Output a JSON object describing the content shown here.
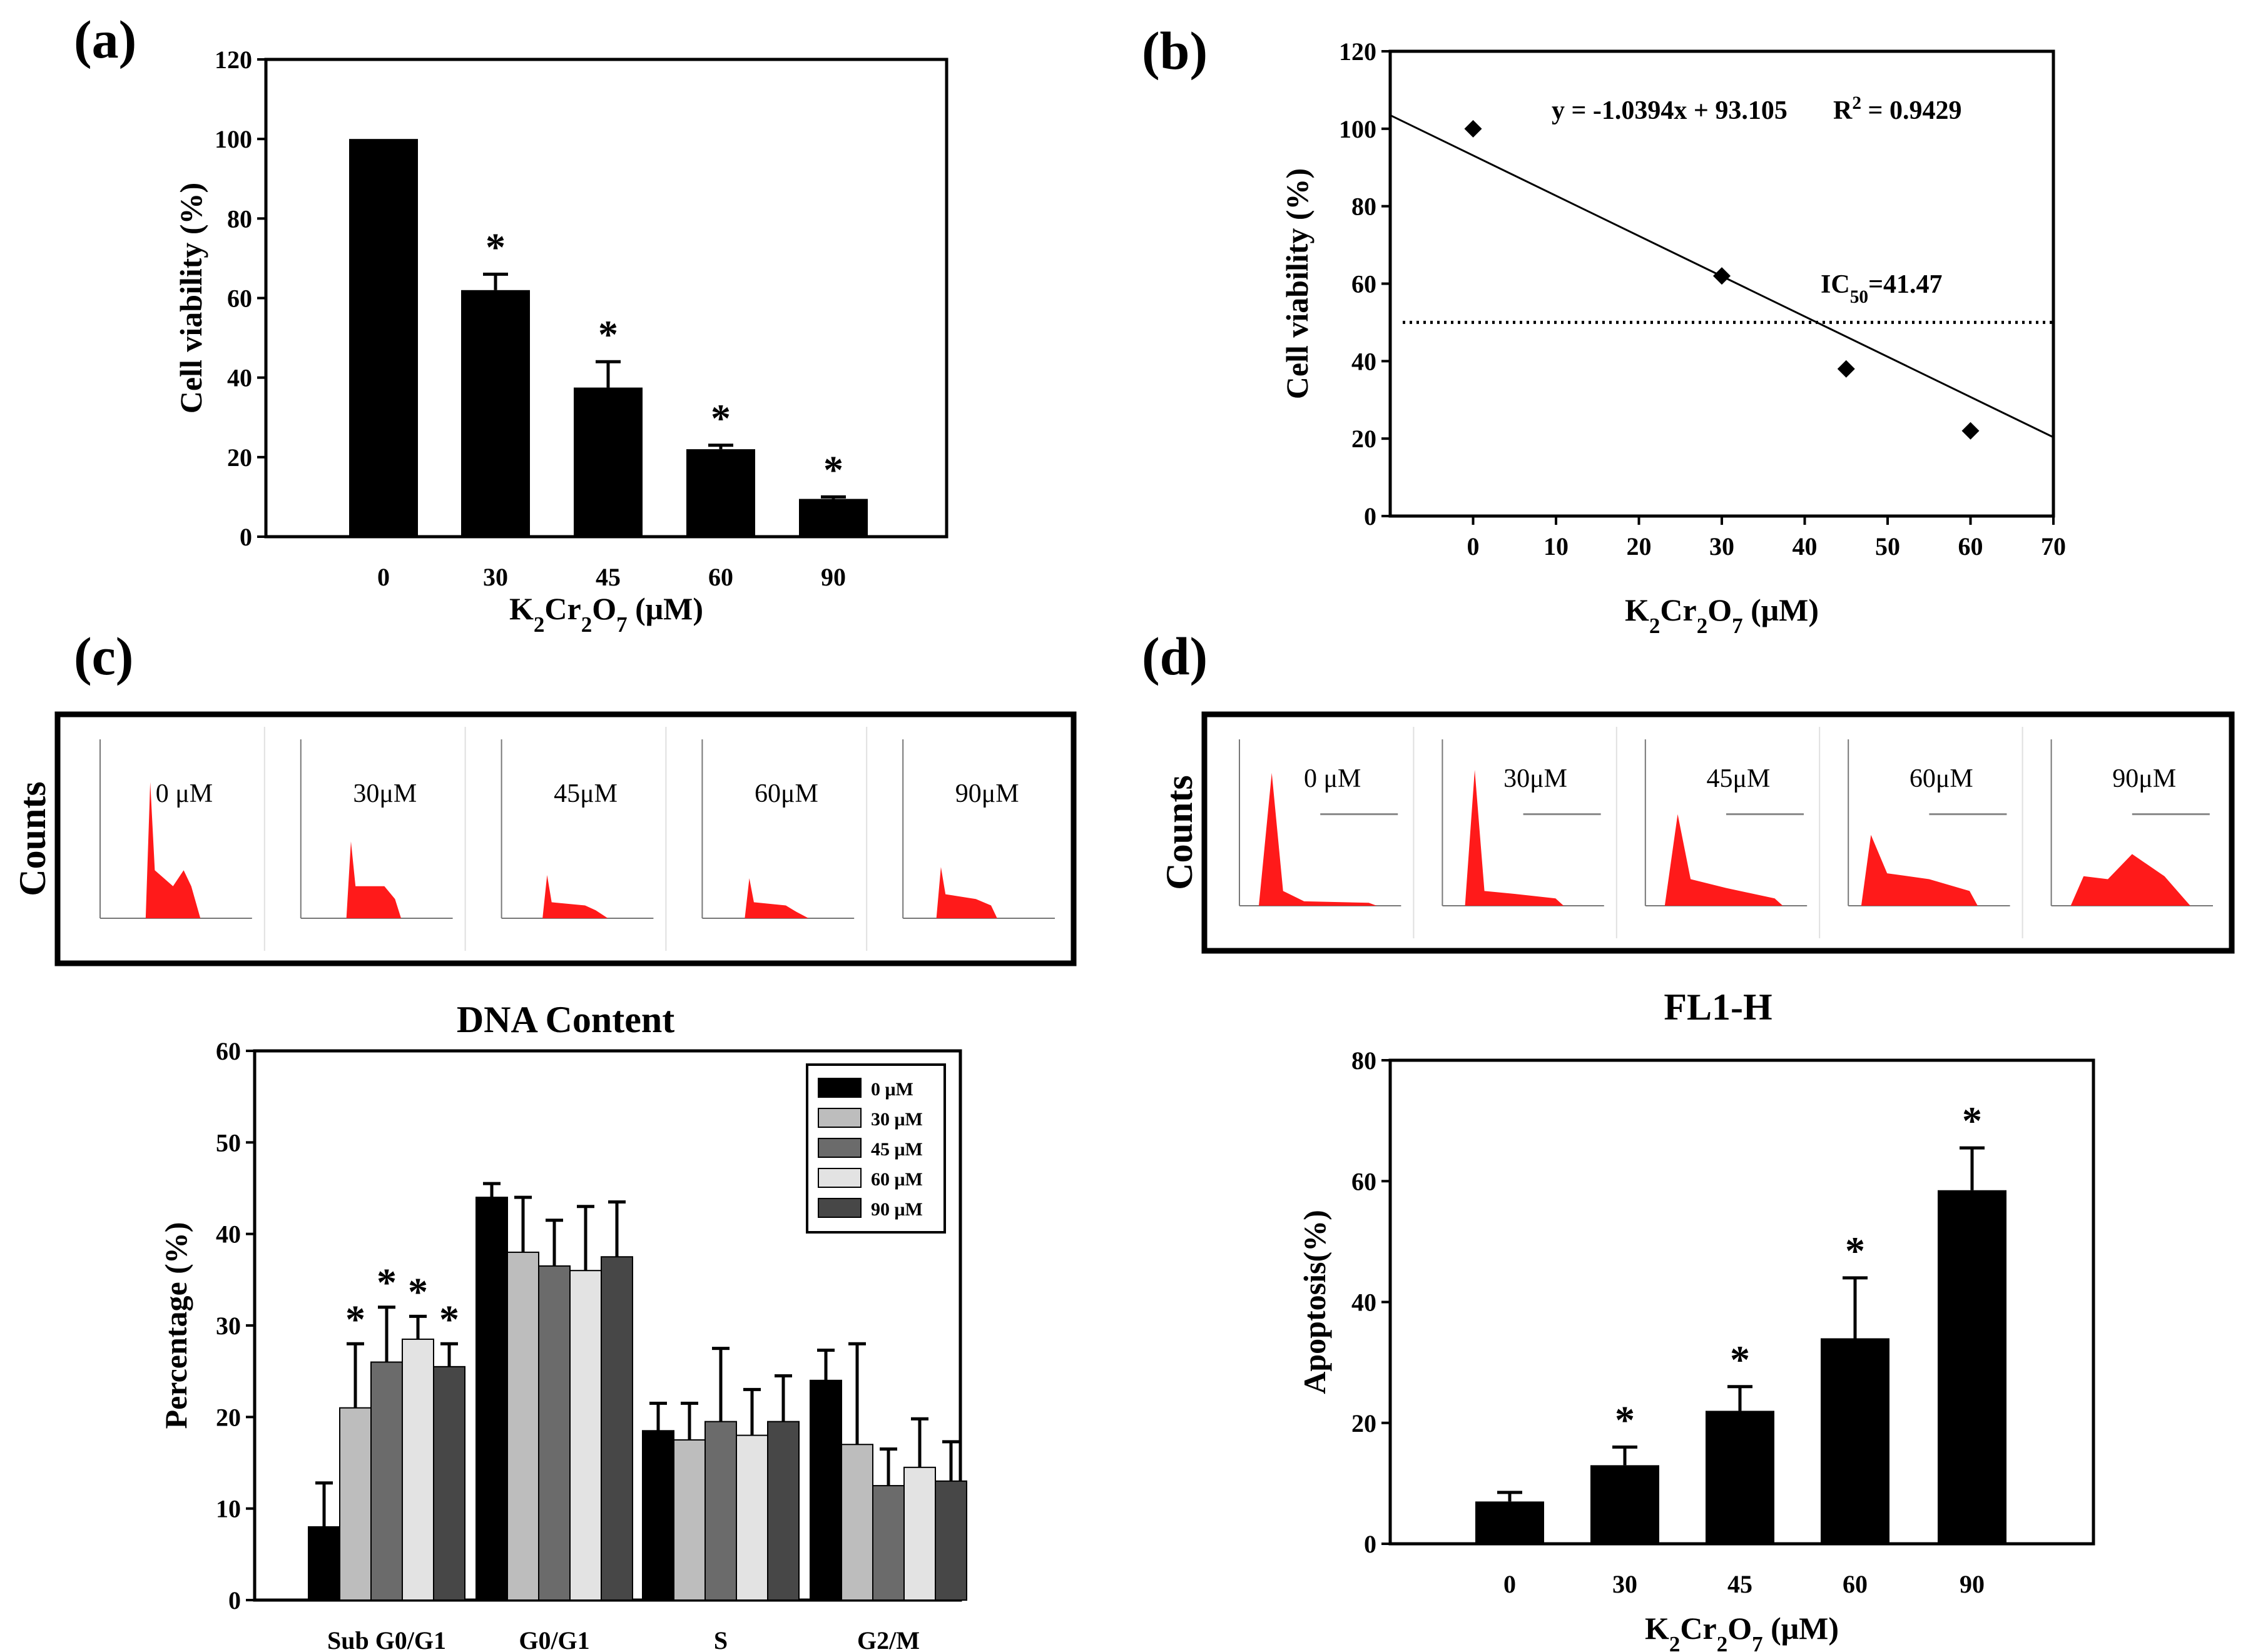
{
  "panel_labels": {
    "a": "(a)",
    "b": "(b)",
    "c": "(c)",
    "d": "(d)"
  },
  "histogram_panels": {
    "c": {
      "y_label": "Counts",
      "x_title": "DNA Content",
      "labels": [
        "0 μM",
        "30μM",
        "45μM",
        "60μM",
        "90μM"
      ]
    },
    "d": {
      "y_label": "Counts",
      "x_title": "FL1-H",
      "labels": [
        "0 μM",
        "30μM",
        "45μM",
        "60μM",
        "90μM"
      ]
    }
  },
  "colors": {
    "bar": "#000000",
    "histogram_fill": "#ff1a1a",
    "series": [
      "#000000",
      "#bdbdbd",
      "#6b6b6b",
      "#e3e3e3",
      "#474747"
    ]
  },
  "chart_data": [
    {
      "id": "a",
      "type": "bar",
      "categories": [
        "0",
        "30",
        "45",
        "60",
        "90"
      ],
      "values": [
        100,
        62,
        37.5,
        22,
        9.5
      ],
      "errors": [
        0,
        4,
        6.5,
        1,
        0.5
      ],
      "significant": [
        false,
        true,
        true,
        true,
        true
      ],
      "sig_marker": "*",
      "ylabel": "Cell viability (%)",
      "xlabel_parts": [
        "K",
        "2",
        "Cr",
        "2",
        "O",
        "7",
        " (μM)"
      ],
      "ylim": [
        0,
        120
      ],
      "yticks": [
        "0",
        "20",
        "40",
        "60",
        "80",
        "100",
        "120"
      ]
    },
    {
      "id": "b",
      "type": "scatter",
      "x": [
        0,
        30,
        45,
        60
      ],
      "y": [
        100,
        62,
        38,
        22
      ],
      "fit_line": {
        "slope": -1.0394,
        "intercept": 93.105
      },
      "equation_text": "y = -1.0394x + 93.105",
      "r2_parts": [
        "R",
        "2",
        " = 0.9429"
      ],
      "threshold_y": 50,
      "ic50_parts": [
        "IC",
        "50",
        "=41.47"
      ],
      "ylabel": "Cell viability (%)",
      "xlabel_parts": [
        "K",
        "2",
        "Cr",
        "2",
        "O",
        "7",
        " (μM)"
      ],
      "xlim": [
        -10,
        70
      ],
      "ylim": [
        0,
        120
      ],
      "xticks": [
        "0",
        "10",
        "20",
        "30",
        "40",
        "50",
        "60",
        "70"
      ],
      "yticks": [
        "0",
        "20",
        "40",
        "60",
        "80",
        "100",
        "120"
      ]
    },
    {
      "id": "c",
      "type": "bar",
      "categories": [
        "Sub G0/G1",
        "G0/G1",
        "S",
        "G2/M"
      ],
      "series": [
        {
          "name": "0  μM",
          "values": [
            8,
            44,
            18.5,
            24
          ],
          "errors": [
            4.8,
            1.5,
            3,
            3.3
          ]
        },
        {
          "name": "30 μM",
          "values": [
            21,
            38,
            17.5,
            17
          ],
          "errors": [
            7,
            6,
            4,
            11
          ]
        },
        {
          "name": "45 μM",
          "values": [
            26,
            36.5,
            19.5,
            12.5
          ],
          "errors": [
            6,
            5,
            8,
            4
          ]
        },
        {
          "name": "60 μM",
          "values": [
            28.5,
            36,
            18,
            14.5
          ],
          "errors": [
            2.5,
            7,
            5,
            5.3
          ]
        },
        {
          "name": "90 μM",
          "values": [
            25.5,
            37.5,
            19.5,
            13
          ],
          "errors": [
            2.5,
            6,
            5,
            4.3
          ]
        }
      ],
      "sig_stars": [
        {
          "category": 0,
          "series": 1
        },
        {
          "category": 0,
          "series": 2
        },
        {
          "category": 0,
          "series": 3
        },
        {
          "category": 0,
          "series": 4
        }
      ],
      "sig_marker": "*",
      "ylabel": "Percentage (%)",
      "ylim": [
        0,
        60
      ],
      "yticks": [
        "0",
        "10",
        "20",
        "30",
        "40",
        "50",
        "60"
      ]
    },
    {
      "id": "d",
      "type": "bar",
      "categories": [
        "0",
        "30",
        "45",
        "60",
        "90"
      ],
      "values": [
        7,
        13,
        22,
        34,
        58.5
      ],
      "errors": [
        1.5,
        3,
        4,
        10,
        7
      ],
      "significant": [
        false,
        true,
        true,
        true,
        true
      ],
      "sig_marker": "*",
      "ylabel": "Apoptosis(%)",
      "xlabel_parts": [
        "K",
        "2",
        "Cr",
        "2",
        "O",
        "7",
        " (μM)"
      ],
      "ylim": [
        0,
        80
      ],
      "yticks": [
        "0",
        "20",
        "40",
        "60",
        "80"
      ]
    }
  ]
}
